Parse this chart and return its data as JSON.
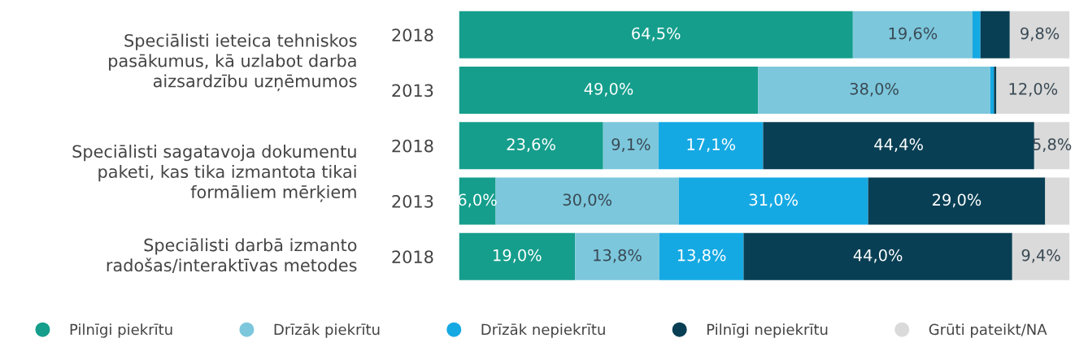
{
  "chart_data": {
    "type": "bar",
    "orientation": "horizontal",
    "stacked": true,
    "tick_labels": "y",
    "grid": false,
    "legend": "bottom",
    "categories": [
      "2018",
      "2013",
      "2018",
      "2013",
      "2018"
    ],
    "series": [
      {
        "name": "Pilnīgi piekrītu",
        "color": "#159e8c",
        "values": [
          64.5,
          49.0,
          23.6,
          6.0,
          19.0
        ],
        "value_labels": [
          "64,5%",
          "49,0%",
          "23,6%",
          "6,0%",
          "19,0%"
        ]
      },
      {
        "name": "Drīzāk piekrītu",
        "color": "#7cc7dc",
        "values": [
          19.6,
          38.0,
          9.1,
          30.0,
          13.8
        ],
        "value_labels": [
          "19,6%",
          "38,0%",
          "9,1%",
          "30,0%",
          "13,8%"
        ]
      },
      {
        "name": "Drīzāk nepiekrītu",
        "color": "#15a9e3",
        "values": [
          1.3,
          0.6,
          17.1,
          31.0,
          13.8
        ],
        "value_labels": [
          null,
          null,
          "17,1%",
          "31,0%",
          "13,8%"
        ]
      },
      {
        "name": "Pilnīgi nepiekrītu",
        "color": "#083f54",
        "values": [
          4.8,
          0.4,
          44.4,
          29.0,
          44.0
        ],
        "value_labels": [
          null,
          null,
          "44,4%",
          "29,0%",
          "44,0%"
        ]
      },
      {
        "name": "Grūti pateikt/NA",
        "color": "#dadada",
        "values": [
          9.8,
          12.0,
          5.8,
          4.0,
          9.4
        ],
        "value_labels": [
          "9,8%",
          "12,0%",
          "5,8%",
          null,
          "9,4%"
        ]
      }
    ],
    "annotations": [
      "Speciālisti ieteica tehniskos\npasākumus, kā uzlabot darba\naizsardzību uzņēmumos",
      "Speciālisti sagatavoja dokumentu\npaketi, kas tika izmantota tikai\nformāliem mērķiem",
      "Speciālisti darbā izmanto\nradošas/interaktīvas metodes"
    ]
  }
}
